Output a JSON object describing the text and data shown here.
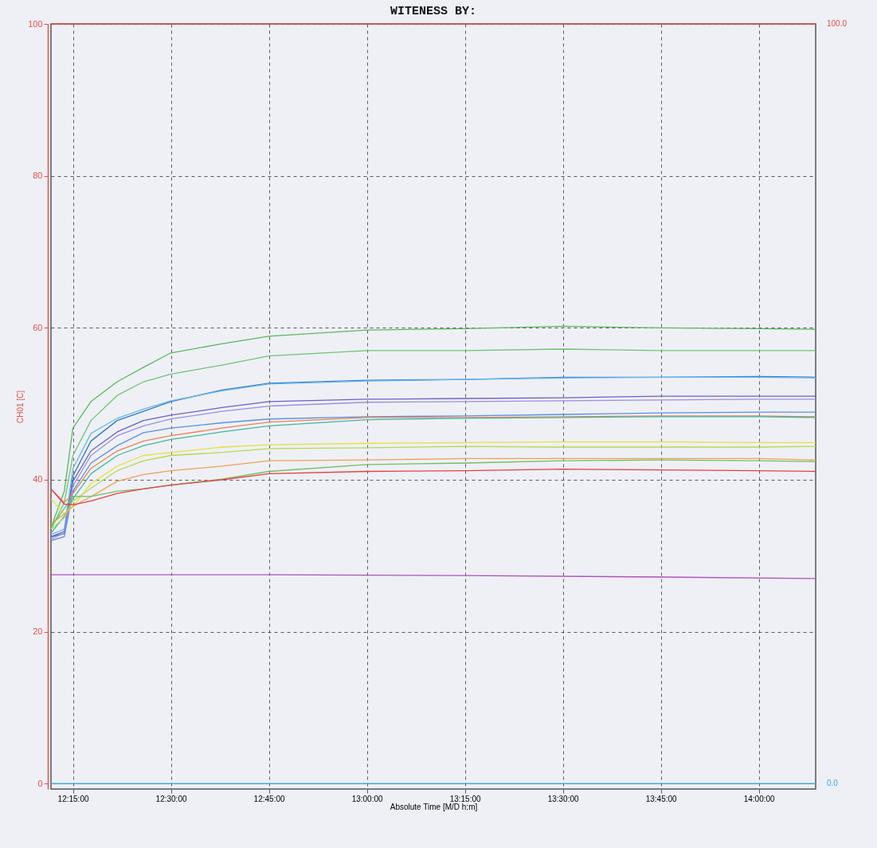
{
  "chart_data": {
    "type": "line",
    "title": "WITENESS BY:",
    "xlabel": "Absolute Time  [M/D h:m]",
    "ylabel": "CH01 [C]",
    "x": [
      12.194,
      12.228,
      12.25,
      12.296,
      12.363,
      12.43,
      12.5,
      12.63,
      12.75,
      13.0,
      13.25,
      13.5,
      13.75,
      14.0,
      14.145
    ],
    "xlim": [
      12.194,
      14.145
    ],
    "xticks": [
      {
        "value": 12.25,
        "label": "12:15:00"
      },
      {
        "value": 12.5,
        "label": "12:30:00"
      },
      {
        "value": 12.75,
        "label": "12:45:00"
      },
      {
        "value": 13.0,
        "label": "13:00:00"
      },
      {
        "value": 13.25,
        "label": "13:15:00"
      },
      {
        "value": 13.5,
        "label": "13:30:00"
      },
      {
        "value": 13.75,
        "label": "13:45:00"
      },
      {
        "value": 14.0,
        "label": "14:00:00"
      }
    ],
    "ylim": [
      -0.7,
      100
    ],
    "yticks": [
      0,
      20,
      40,
      60,
      80,
      100
    ],
    "grid": true,
    "line_style": "solid",
    "ref_lines": [
      {
        "axis": "y",
        "value": 100,
        "label": "100.0",
        "color": "#e8504a"
      },
      {
        "axis": "y",
        "value": 0,
        "label": "0.0",
        "color": "#40a8e0"
      }
    ],
    "series": [
      {
        "color": "#5cb85c",
        "values": [
          33.7,
          38.5,
          46.8,
          50.3,
          52.9,
          54.8,
          56.7,
          57.9,
          58.9,
          59.7,
          59.9,
          60.2,
          60.0,
          59.9,
          59.8
        ]
      },
      {
        "color": "#72c472",
        "values": [
          33.5,
          37.0,
          43.2,
          47.8,
          51.1,
          52.9,
          53.9,
          55.1,
          56.3,
          57.0,
          57.0,
          57.2,
          57.0,
          57.0,
          57.0
        ]
      },
      {
        "color": "#2f78d0",
        "values": [
          32.5,
          32.9,
          40.5,
          45.1,
          47.8,
          49.0,
          50.3,
          51.8,
          52.7,
          53.1,
          53.2,
          53.5,
          53.5,
          53.6,
          53.5
        ]
      },
      {
        "color": "#6cb8e8",
        "values": [
          32.8,
          33.5,
          41.5,
          46.1,
          48.1,
          49.3,
          50.4,
          51.7,
          52.6,
          53.0,
          53.2,
          53.4,
          53.5,
          53.5,
          53.4
        ]
      },
      {
        "color": "#6a60c8",
        "values": [
          32.5,
          33.2,
          39.8,
          43.8,
          46.3,
          47.8,
          48.5,
          49.5,
          50.3,
          50.6,
          50.7,
          50.8,
          51.0,
          51.0,
          51.0
        ]
      },
      {
        "color": "#9a8ee0",
        "values": [
          32.2,
          33.0,
          39.2,
          43.2,
          45.8,
          47.1,
          48.0,
          49.0,
          49.7,
          50.2,
          50.3,
          50.4,
          50.5,
          50.6,
          50.6
        ]
      },
      {
        "color": "#5a90e0",
        "values": [
          32.0,
          32.5,
          38.5,
          42.2,
          44.5,
          46.2,
          46.8,
          47.5,
          48.0,
          48.3,
          48.4,
          48.6,
          48.8,
          48.9,
          48.9
        ]
      },
      {
        "color": "#f08050",
        "values": [
          38.8,
          37.0,
          38.2,
          41.5,
          43.8,
          45.1,
          45.8,
          46.8,
          47.6,
          48.2,
          48.2,
          48.3,
          48.4,
          48.4,
          48.3
        ]
      },
      {
        "color": "#40b8a0",
        "values": [
          33.0,
          35.2,
          37.5,
          40.8,
          43.2,
          44.5,
          45.3,
          46.3,
          47.1,
          47.9,
          48.1,
          48.2,
          48.3,
          48.3,
          48.2
        ]
      },
      {
        "color": "#e8e040",
        "values": [
          37.5,
          35.5,
          36.5,
          39.5,
          41.8,
          43.2,
          43.6,
          44.3,
          44.6,
          44.8,
          44.9,
          45.0,
          45.0,
          44.9,
          44.9
        ]
      },
      {
        "color": "#b8d850",
        "values": [
          33.5,
          35.0,
          37.2,
          38.9,
          41.2,
          42.5,
          43.2,
          43.6,
          44.1,
          44.2,
          44.4,
          44.3,
          44.3,
          44.3,
          44.4
        ]
      },
      {
        "color": "#f0a050",
        "values": [
          34.2,
          35.5,
          36.5,
          37.8,
          39.8,
          40.7,
          41.2,
          41.8,
          42.5,
          42.6,
          42.8,
          42.8,
          42.8,
          42.8,
          42.6
        ]
      },
      {
        "color": "#70c060",
        "values": [
          33.8,
          36.2,
          37.8,
          37.8,
          38.5,
          38.8,
          39.3,
          40.1,
          41.1,
          42.0,
          42.2,
          42.5,
          42.6,
          42.5,
          42.4
        ]
      },
      {
        "color": "#e84040",
        "values": [
          38.8,
          36.8,
          36.7,
          37.2,
          38.2,
          38.8,
          39.3,
          40.0,
          40.8,
          41.1,
          41.2,
          41.4,
          41.3,
          41.2,
          41.1
        ]
      },
      {
        "color": "#b050c0",
        "x": [
          12.194,
          12.75,
          13.25,
          13.75,
          14.145
        ],
        "values": [
          27.5,
          27.5,
          27.4,
          27.2,
          27.0
        ]
      }
    ]
  }
}
